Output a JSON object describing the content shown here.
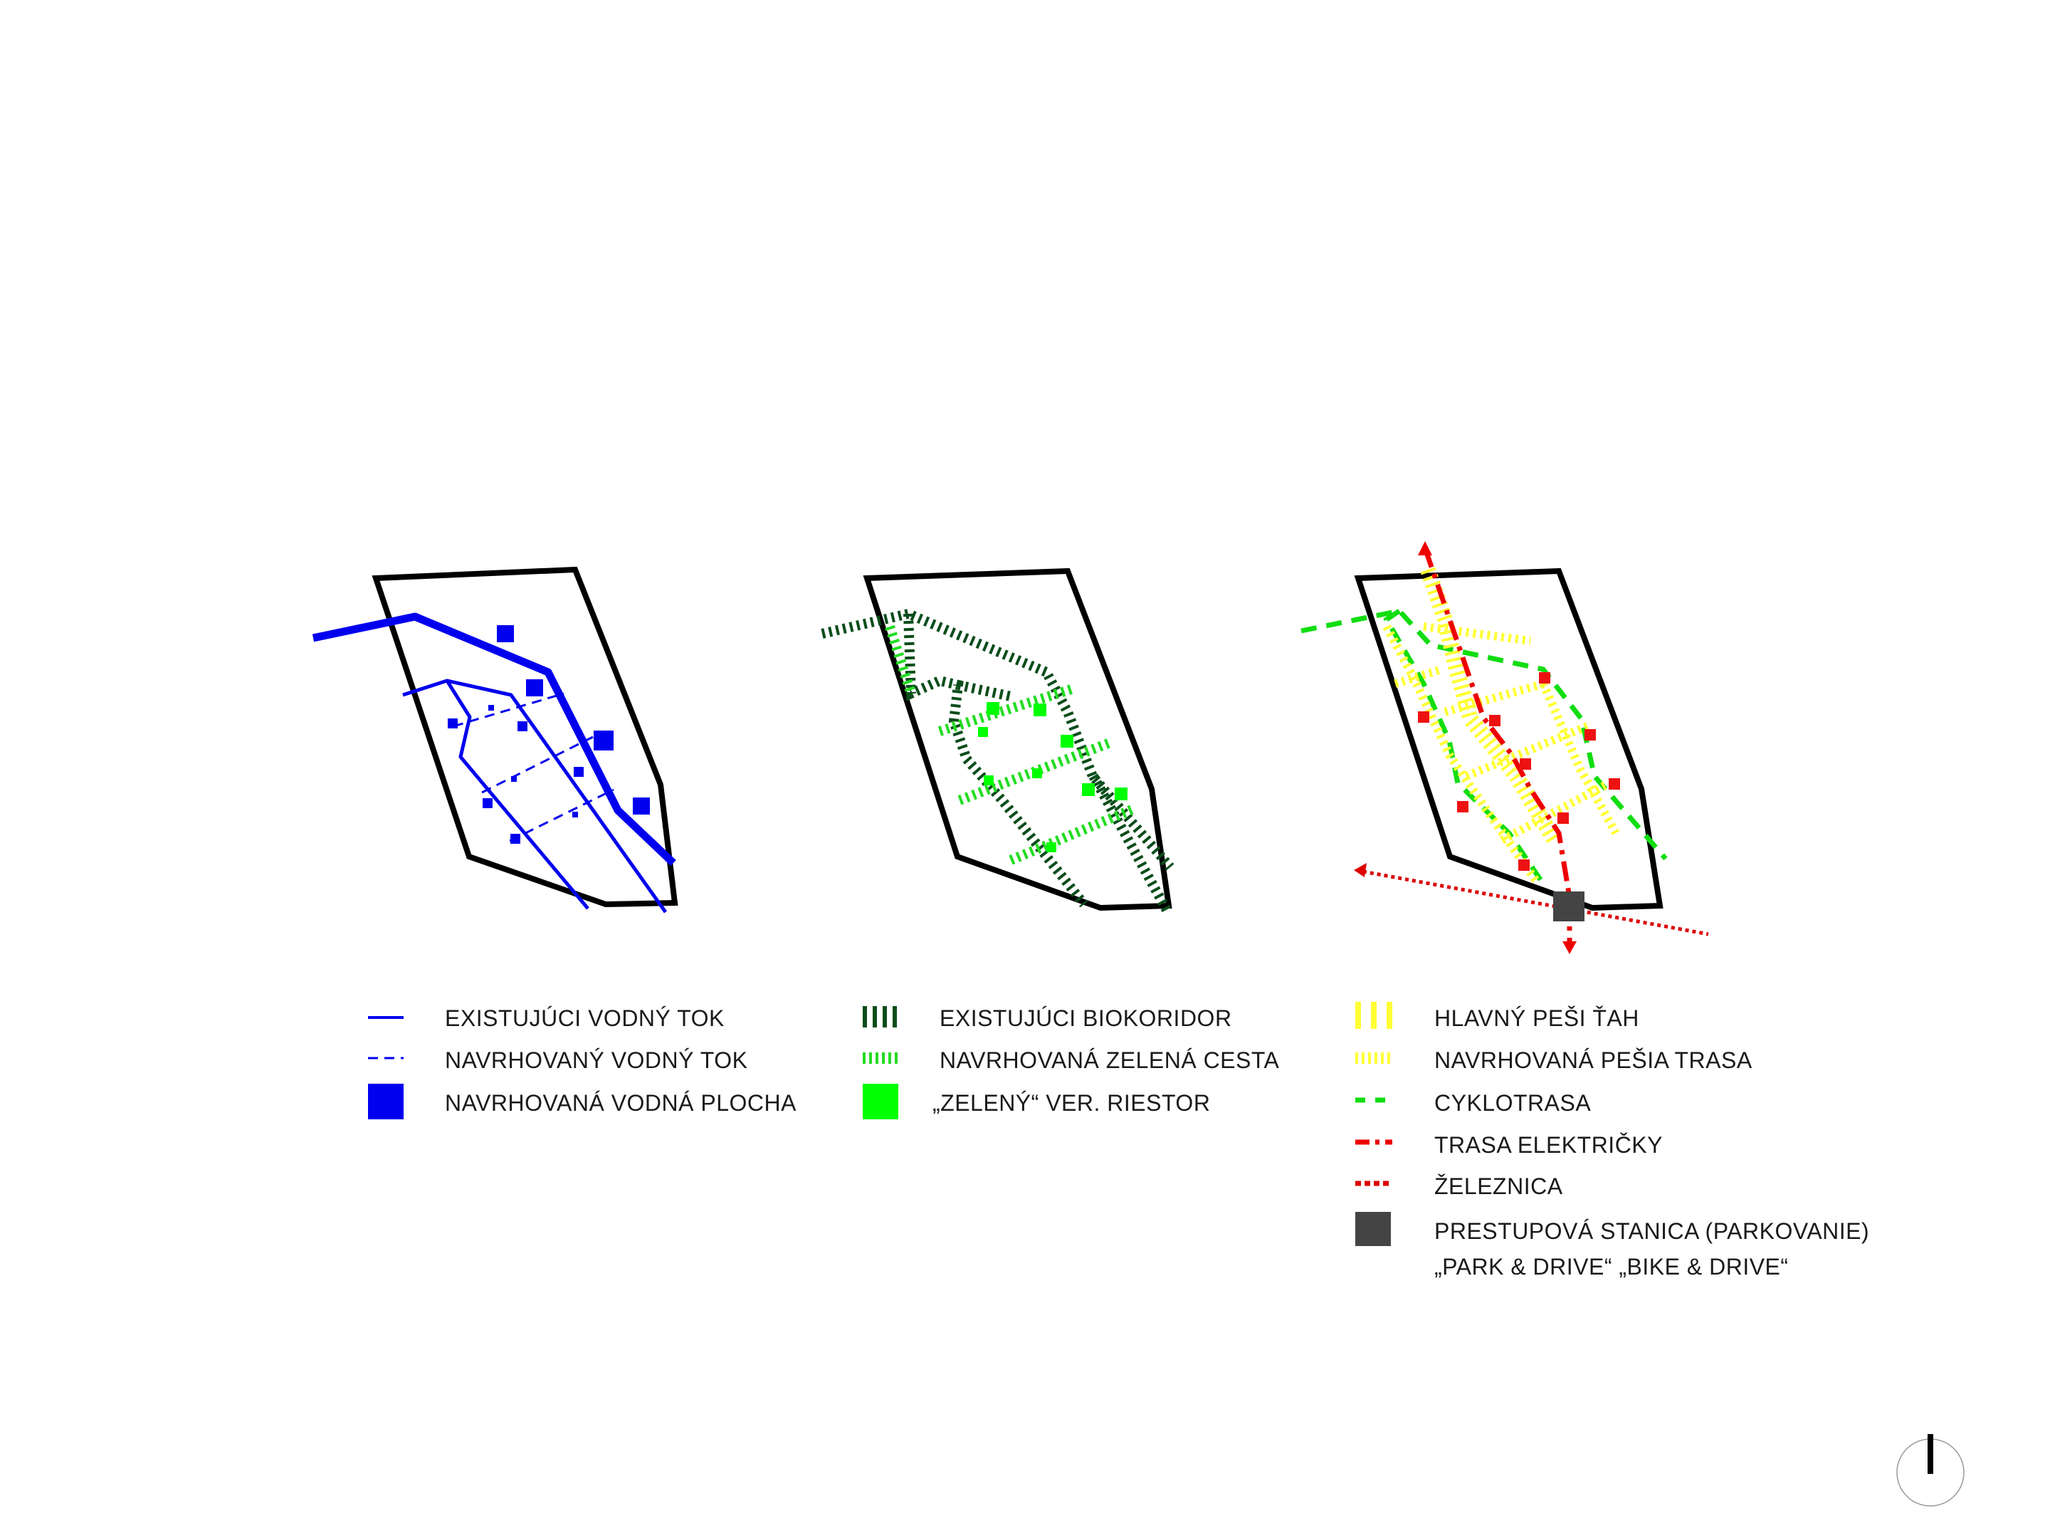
{
  "colors": {
    "boundary": "#000000",
    "water": "#0000ee",
    "existing_biocorridor": "#0b4d1a",
    "proposed_green": "#22dd22",
    "green_space": "#00ff00",
    "pedestrian": "#ffff33",
    "cycle": "#11dd11",
    "tram": "#ee0000",
    "railway": "#dd0000",
    "red_squares": "#ee1111",
    "station": "#444444"
  },
  "maps": [
    {
      "id": "water",
      "legend": [
        {
          "symbol": "solid-line",
          "label": "EXISTUJÚCI VODNÝ TOK"
        },
        {
          "symbol": "dashed-line",
          "label": "NAVRHOVANÝ VODNÝ TOK"
        },
        {
          "symbol": "square",
          "label": "NAVRHOVANÁ VODNÁ PLOCHA"
        }
      ]
    },
    {
      "id": "green",
      "legend": [
        {
          "symbol": "hatched-dark",
          "label": "EXISTUJÚCI BIOKORIDOR"
        },
        {
          "symbol": "hatched-light",
          "label": "NAVRHOVANÁ ZELENÁ CESTA"
        },
        {
          "symbol": "square",
          "label": "„ZELENÝ“ VER. RIESTOR"
        }
      ]
    },
    {
      "id": "transport",
      "legend": [
        {
          "symbol": "hatched-yellow-bold",
          "label": "HLAVNÝ PEŠI ŤAH"
        },
        {
          "symbol": "hatched-yellow",
          "label": "NAVRHOVANÁ PEŠIA TRASA"
        },
        {
          "symbol": "dashed-green",
          "label": "CYKLOTRASA"
        },
        {
          "symbol": "dashdot-red",
          "label": "TRASA ELEKTRIČKY"
        },
        {
          "symbol": "dotted-red",
          "label": "ŽELEZNICA"
        },
        {
          "symbol": "square-dark",
          "label": "PRESTUPOVÁ STANICA (PARKOVANIE)",
          "label2": "„PARK & DRIVE“ „BIKE & DRIVE“"
        }
      ]
    }
  ],
  "north_arrow": {
    "symbol": "north-arrow"
  }
}
